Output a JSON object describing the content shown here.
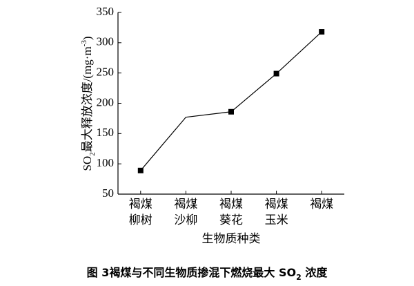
{
  "chart_data": {
    "type": "line",
    "title": [
      {
        "text": "图 3"
      },
      {
        "text": "褐煤与不同生物质掺混下燃烧最大 SO"
      },
      {
        "text": "2",
        "sub": true
      },
      {
        "text": " 浓度"
      }
    ],
    "x_label": "生物质种类",
    "y_label": [
      {
        "text": "SO"
      },
      {
        "text": "2",
        "sub": true
      },
      {
        "text": "最大释放浓度/(mg·m"
      },
      {
        "text": "-3",
        "sup": true
      },
      {
        "text": ")"
      }
    ],
    "categories": [
      [
        "褐煤",
        "柳树"
      ],
      [
        "褐煤",
        "沙柳"
      ],
      [
        "褐煤",
        "葵花"
      ],
      [
        "褐煤",
        "玉米"
      ],
      [
        "褐煤"
      ]
    ],
    "values": [
      89,
      177,
      186,
      249,
      318
    ],
    "show_marker": [
      true,
      false,
      true,
      true,
      true
    ],
    "color": "#000000",
    "ylim": [
      50,
      350
    ],
    "yticks": [
      50,
      100,
      150,
      200,
      250,
      300,
      350
    ]
  }
}
